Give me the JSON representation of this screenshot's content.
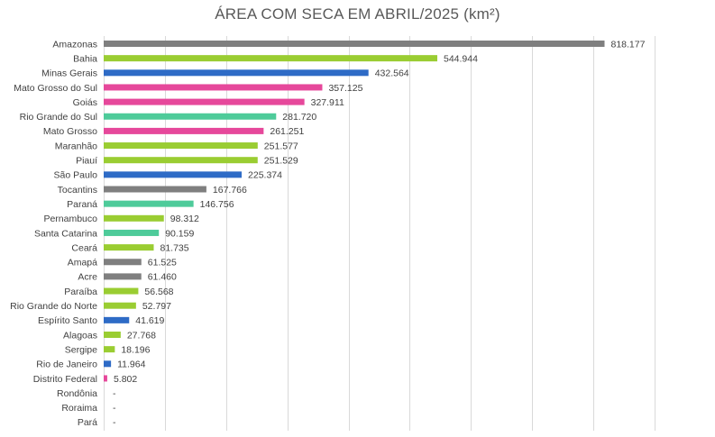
{
  "chart_data": {
    "type": "bar",
    "orientation": "horizontal",
    "title": "ÁREA COM SECA EM ABRIL/2025 (km²)",
    "xlim": [
      0,
      950000
    ],
    "x_gridline_step": 100000,
    "grid": true,
    "legend": "none",
    "colors": {
      "Norte": "#7f7f7f",
      "Nordeste": "#9acd32",
      "Sudeste": "#2e6bc6",
      "Centro-Oeste": "#e6489b",
      "Sul": "#4ecb9a"
    },
    "bars": [
      {
        "category": "Amazonas",
        "value": 818177,
        "label": "818.177",
        "color": "#7f7f7f"
      },
      {
        "category": "Bahia",
        "value": 544944,
        "label": "544.944",
        "color": "#9acd32"
      },
      {
        "category": "Minas Gerais",
        "value": 432564,
        "label": "432.564",
        "color": "#2e6bc6"
      },
      {
        "category": "Mato Grosso do Sul",
        "value": 357125,
        "label": "357.125",
        "color": "#e6489b"
      },
      {
        "category": "Goiás",
        "value": 327911,
        "label": "327.911",
        "color": "#e6489b"
      },
      {
        "category": "Rio Grande do Sul",
        "value": 281720,
        "label": "281.720",
        "color": "#4ecb9a"
      },
      {
        "category": "Mato Grosso",
        "value": 261251,
        "label": "261.251",
        "color": "#e6489b"
      },
      {
        "category": "Maranhão",
        "value": 251577,
        "label": "251.577",
        "color": "#9acd32"
      },
      {
        "category": "Piauí",
        "value": 251529,
        "label": "251.529",
        "color": "#9acd32"
      },
      {
        "category": "São Paulo",
        "value": 225374,
        "label": "225.374",
        "color": "#2e6bc6"
      },
      {
        "category": "Tocantins",
        "value": 167766,
        "label": "167.766",
        "color": "#7f7f7f"
      },
      {
        "category": "Paraná",
        "value": 146756,
        "label": "146.756",
        "color": "#4ecb9a"
      },
      {
        "category": "Pernambuco",
        "value": 98312,
        "label": "98.312",
        "color": "#9acd32"
      },
      {
        "category": "Santa Catarina",
        "value": 90159,
        "label": "90.159",
        "color": "#4ecb9a"
      },
      {
        "category": "Ceará",
        "value": 81735,
        "label": "81.735",
        "color": "#9acd32"
      },
      {
        "category": "Amapá",
        "value": 61525,
        "label": "61.525",
        "color": "#7f7f7f"
      },
      {
        "category": "Acre",
        "value": 61460,
        "label": "61.460",
        "color": "#7f7f7f"
      },
      {
        "category": "Paraíba",
        "value": 56568,
        "label": "56.568",
        "color": "#9acd32"
      },
      {
        "category": "Rio Grande do Norte",
        "value": 52797,
        "label": "52.797",
        "color": "#9acd32"
      },
      {
        "category": "Espírito Santo",
        "value": 41619,
        "label": "41.619",
        "color": "#2e6bc6"
      },
      {
        "category": "Alagoas",
        "value": 27768,
        "label": "27.768",
        "color": "#9acd32"
      },
      {
        "category": "Sergipe",
        "value": 18196,
        "label": "18.196",
        "color": "#9acd32"
      },
      {
        "category": "Rio de Janeiro",
        "value": 11964,
        "label": "11.964",
        "color": "#2e6bc6"
      },
      {
        "category": "Distrito Federal",
        "value": 5802,
        "label": "5.802",
        "color": "#e6489b"
      },
      {
        "category": "Rondônia",
        "value": 0,
        "label": "-",
        "color": "#7f7f7f"
      },
      {
        "category": "Roraima",
        "value": 0,
        "label": "-",
        "color": "#7f7f7f"
      },
      {
        "category": "Pará",
        "value": 0,
        "label": "-",
        "color": "#7f7f7f"
      }
    ]
  }
}
